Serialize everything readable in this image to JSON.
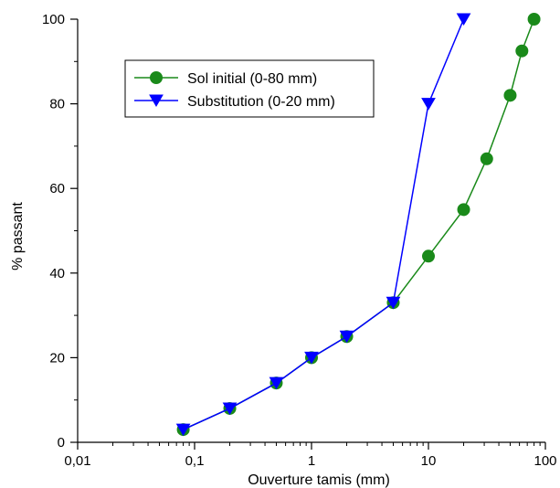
{
  "chart_data": {
    "type": "line",
    "title": "",
    "xlabel": "Ouverture tamis (mm)",
    "ylabel": "% passant",
    "xscale": "log",
    "xlim": [
      0.01,
      100
    ],
    "ylim": [
      0,
      100
    ],
    "grid": false,
    "legend_position": "top-left",
    "x_ticks": [
      {
        "value": 0.01,
        "label": "0,01"
      },
      {
        "value": 0.1,
        "label": "0,1"
      },
      {
        "value": 1,
        "label": "1"
      },
      {
        "value": 10,
        "label": "10"
      },
      {
        "value": 100,
        "label": "100"
      }
    ],
    "y_ticks": [
      {
        "value": 0,
        "label": "0"
      },
      {
        "value": 20,
        "label": "20"
      },
      {
        "value": 40,
        "label": "40"
      },
      {
        "value": 60,
        "label": "60"
      },
      {
        "value": 80,
        "label": "80"
      },
      {
        "value": 100,
        "label": "100"
      }
    ],
    "series": [
      {
        "name": "Sol initial (0-80 mm)",
        "color": "#1a8a1a",
        "marker": "circle",
        "x": [
          0.08,
          0.2,
          0.5,
          1,
          2,
          5,
          10,
          20,
          31.5,
          50,
          63,
          80
        ],
        "y": [
          3,
          8,
          14,
          20,
          25,
          33,
          44,
          55,
          67,
          82,
          92.5,
          100
        ]
      },
      {
        "name": "Substitution (0-20 mm)",
        "color": "#0000ff",
        "marker": "triangle-down",
        "x": [
          0.08,
          0.2,
          0.5,
          1,
          2,
          5,
          10,
          20
        ],
        "y": [
          3,
          8,
          14,
          20,
          25,
          33,
          80,
          100
        ]
      }
    ]
  }
}
